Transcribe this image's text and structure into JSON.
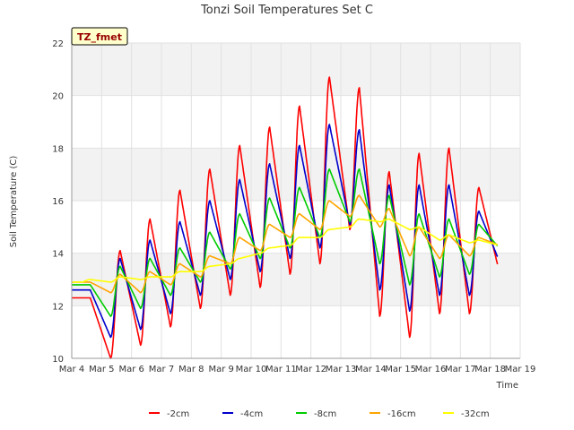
{
  "chart_data": {
    "type": "line",
    "title": "Tonzi Soil Temperatures Set C",
    "xlabel": "Time",
    "ylabel": "Soil Temperature (C)",
    "annotation": "TZ_fmet",
    "xlim": [
      4,
      19
    ],
    "ylim": [
      10,
      22
    ],
    "x_ticks": [
      4,
      5,
      6,
      7,
      8,
      9,
      10,
      11,
      12,
      13,
      14,
      15,
      16,
      17,
      18,
      19
    ],
    "x_tick_labels": [
      "Mar 4",
      "Mar 5",
      "Mar 6",
      "Mar 7",
      "Mar 8",
      "Mar 9",
      "Mar 10",
      "Mar 11",
      "Mar 12",
      "Mar 13",
      "Mar 14",
      "Mar 15",
      "Mar 16",
      "Mar 17",
      "Mar 18",
      "Mar 19"
    ],
    "y_ticks": [
      10,
      12,
      14,
      16,
      18,
      20,
      22
    ],
    "grid": true,
    "legend_placement": "bottom-center",
    "day_series": {
      "days": [
        4,
        5,
        6,
        7,
        8,
        9,
        10,
        11,
        12,
        13,
        14,
        15,
        16,
        17,
        18
      ],
      "series": [
        {
          "name": "-2cm",
          "color": "#ff0000",
          "daymin": [
            12.3,
            10.0,
            10.5,
            11.2,
            11.9,
            12.4,
            12.7,
            13.2,
            13.6,
            14.9,
            11.6,
            10.8,
            11.7,
            11.7,
            13.3
          ],
          "daymax": [
            12.3,
            14.1,
            15.3,
            16.4,
            17.2,
            18.1,
            18.8,
            19.6,
            20.7,
            20.3,
            17.1,
            17.8,
            18.0,
            16.5,
            16.4
          ]
        },
        {
          "name": "-4cm",
          "color": "#0000cc",
          "daymin": [
            12.6,
            10.8,
            11.1,
            11.7,
            12.4,
            13.0,
            13.3,
            13.8,
            14.2,
            15.1,
            12.6,
            11.8,
            12.4,
            12.4,
            13.7
          ],
          "daymax": [
            12.6,
            13.8,
            14.5,
            15.2,
            16.0,
            16.8,
            17.4,
            18.1,
            18.9,
            18.7,
            16.6,
            16.6,
            16.6,
            15.6,
            15.5
          ]
        },
        {
          "name": "-8cm",
          "color": "#00cc00",
          "daymin": [
            12.8,
            11.6,
            11.9,
            12.4,
            12.9,
            13.4,
            13.8,
            14.2,
            14.6,
            15.2,
            13.6,
            12.8,
            13.1,
            13.2,
            14.2
          ],
          "daymax": [
            12.8,
            13.5,
            13.8,
            14.2,
            14.8,
            15.5,
            16.1,
            16.5,
            17.2,
            17.2,
            16.2,
            15.5,
            15.3,
            15.1,
            14.9
          ]
        },
        {
          "name": "-16cm",
          "color": "#ffa500",
          "daymin": [
            12.9,
            12.5,
            12.5,
            12.8,
            13.1,
            13.6,
            14.1,
            14.6,
            14.9,
            15.4,
            15.0,
            13.9,
            13.8,
            13.9,
            14.3
          ],
          "daymax": [
            12.9,
            13.2,
            13.3,
            13.6,
            13.9,
            14.6,
            15.1,
            15.5,
            16.0,
            16.2,
            15.7,
            15.0,
            14.7,
            14.6,
            14.5
          ]
        },
        {
          "name": "-32cm",
          "color": "#ffff00",
          "daymin": [
            12.9,
            12.9,
            13.0,
            13.1,
            13.3,
            13.6,
            14.0,
            14.3,
            14.6,
            15.0,
            15.2,
            14.9,
            14.5,
            14.4,
            14.3
          ],
          "daymax": [
            13.0,
            13.1,
            13.1,
            13.3,
            13.5,
            13.8,
            14.2,
            14.6,
            14.9,
            15.3,
            15.3,
            15.0,
            14.7,
            14.5,
            14.4
          ]
        }
      ]
    }
  }
}
